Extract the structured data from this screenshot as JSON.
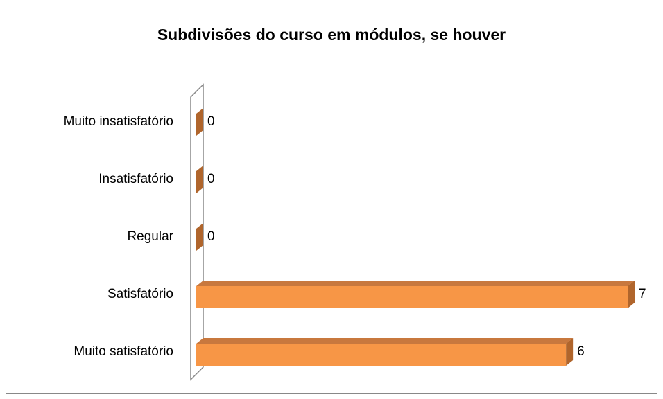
{
  "chart_data": {
    "type": "bar",
    "orientation": "horizontal",
    "title": "Subdivisões do curso em módulos, se houver",
    "categories": [
      "Muito insatisfatório",
      "Insatisfatório",
      "Regular",
      "Satisfatório",
      "Muito satisfatório"
    ],
    "values": [
      0,
      0,
      0,
      7,
      6
    ],
    "color": "#f79646",
    "xlim": [
      0,
      7
    ],
    "grid": false
  }
}
